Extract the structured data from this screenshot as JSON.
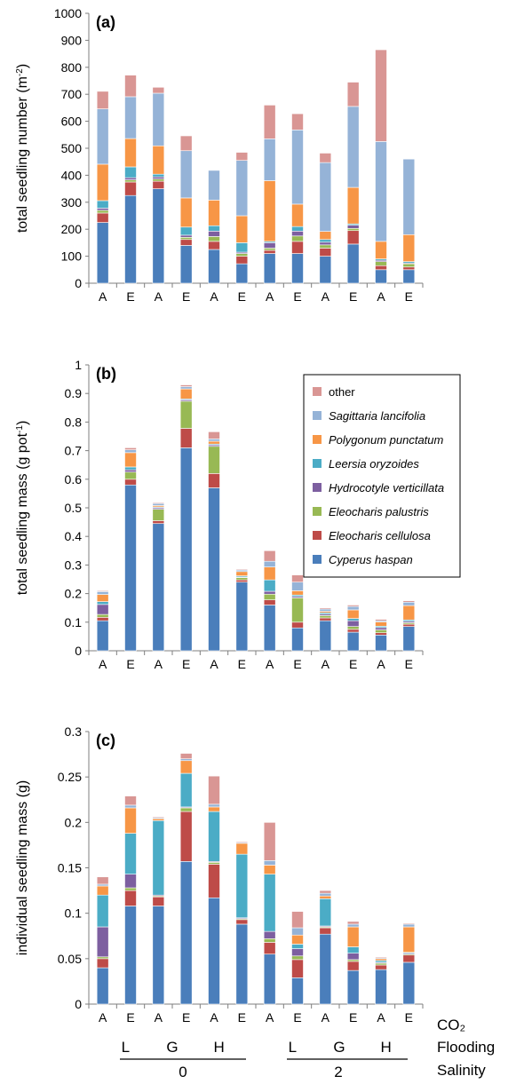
{
  "colors": {
    "Cyperus haspan": "#4a7ebb",
    "Eleocharis cellulosa": "#be4b48",
    "Eleocharis palustris": "#98b954",
    "Hydrocotyle verticillata": "#7d5fa0",
    "Leersia oryzoides": "#4bacc6",
    "Polygonum punctatum": "#f79646",
    "Sagittaria lancifolia": "#95b3d7",
    "other": "#d99694"
  },
  "chart_data": [
    {
      "type": "bar",
      "stacked": true,
      "panel_label": "(a)",
      "ylabel": "total seedling number (m",
      "ylabel_sup": "-2",
      "ylabel_tail": ")",
      "ylim": [
        0,
        1000
      ],
      "yticks": [
        "0",
        "100",
        "200",
        "300",
        "400",
        "500",
        "600",
        "700",
        "800",
        "900",
        "1000"
      ],
      "categories": [
        "A",
        "E",
        "A",
        "E",
        "A",
        "E",
        "A",
        "E",
        "A",
        "E",
        "A",
        "E"
      ],
      "series": [
        {
          "name": "Cyperus haspan",
          "values": [
            225,
            325,
            350,
            140,
            125,
            72,
            110,
            110,
            100,
            145,
            50,
            50
          ]
        },
        {
          "name": "Eleocharis cellulosa",
          "values": [
            35,
            50,
            28,
            22,
            30,
            28,
            12,
            45,
            30,
            50,
            15,
            10
          ]
        },
        {
          "name": "Eleocharis palustris",
          "values": [
            10,
            8,
            8,
            8,
            18,
            10,
            8,
            20,
            12,
            8,
            15,
            12
          ]
        },
        {
          "name": "Hydrocotyle verticillata",
          "values": [
            8,
            8,
            8,
            8,
            20,
            5,
            20,
            18,
            10,
            12,
            5,
            3
          ]
        },
        {
          "name": "Leersia oryzoides",
          "values": [
            28,
            40,
            10,
            30,
            20,
            35,
            5,
            17,
            10,
            5,
            5,
            5
          ]
        },
        {
          "name": "Polygonum punctatum",
          "values": [
            135,
            105,
            105,
            108,
            95,
            100,
            225,
            83,
            30,
            135,
            65,
            100
          ]
        },
        {
          "name": "Sagittaria lancifolia",
          "values": [
            205,
            155,
            195,
            175,
            110,
            205,
            155,
            275,
            255,
            300,
            370,
            280
          ]
        },
        {
          "name": "other",
          "values": [
            65,
            80,
            22,
            55,
            0,
            30,
            125,
            60,
            35,
            90,
            340,
            0
          ]
        }
      ]
    },
    {
      "type": "bar",
      "stacked": true,
      "panel_label": "(b)",
      "ylabel": "total seedling mass (g pot",
      "ylabel_sup": "-1",
      "ylabel_tail": ")",
      "ylim": [
        0,
        1
      ],
      "yticks": [
        "0",
        "0.1",
        "0.2",
        "0.3",
        "0.4",
        "0.5",
        "0.6",
        "0.7",
        "0.8",
        "0.9",
        "1"
      ],
      "categories": [
        "A",
        "E",
        "A",
        "E",
        "A",
        "E",
        "A",
        "E",
        "A",
        "E",
        "A",
        "E"
      ],
      "legend_position": "top-right",
      "legend_order": [
        "other",
        "Sagittaria lancifolia",
        "Polygonum punctatum",
        "Leersia oryzoides",
        "Hydrocotyle verticillata",
        "Eleocharis palustris",
        "Eleocharis cellulosa",
        "Cyperus haspan"
      ],
      "series": [
        {
          "name": "Cyperus haspan",
          "values": [
            0.105,
            0.58,
            0.445,
            0.71,
            0.57,
            0.24,
            0.16,
            0.08,
            0.105,
            0.065,
            0.055,
            0.085
          ]
        },
        {
          "name": "Eleocharis cellulosa",
          "values": [
            0.012,
            0.02,
            0.01,
            0.068,
            0.05,
            0.008,
            0.018,
            0.02,
            0.01,
            0.01,
            0.008,
            0.008
          ]
        },
        {
          "name": "Eleocharis palustris",
          "values": [
            0.01,
            0.025,
            0.04,
            0.095,
            0.095,
            0.008,
            0.02,
            0.085,
            0.008,
            0.01,
            0.01,
            0.005
          ]
        },
        {
          "name": "Hydrocotyle verticillata",
          "values": [
            0.035,
            0.008,
            0.005,
            0.005,
            0.005,
            0.002,
            0.01,
            0.005,
            0.005,
            0.02,
            0.008,
            0.005
          ]
        },
        {
          "name": "Leersia oryzoides",
          "values": [
            0.01,
            0.01,
            0.003,
            0.003,
            0.003,
            0.004,
            0.04,
            0.005,
            0.005,
            0.008,
            0.005,
            0.005
          ]
        },
        {
          "name": "Polygonum punctatum",
          "values": [
            0.025,
            0.05,
            0.005,
            0.035,
            0.01,
            0.015,
            0.045,
            0.015,
            0.005,
            0.03,
            0.015,
            0.05
          ]
        },
        {
          "name": "Sagittaria lancifolia",
          "values": [
            0.01,
            0.01,
            0.007,
            0.008,
            0.008,
            0.005,
            0.02,
            0.03,
            0.008,
            0.012,
            0.004,
            0.012
          ]
        },
        {
          "name": "other",
          "values": [
            0.003,
            0.007,
            0.003,
            0.006,
            0.025,
            0.003,
            0.037,
            0.025,
            0.004,
            0.005,
            0.005,
            0.005
          ]
        }
      ]
    },
    {
      "type": "bar",
      "stacked": true,
      "panel_label": "(c)",
      "ylabel": "individual seedling mass (g)",
      "ylim": [
        0,
        0.3
      ],
      "yticks": [
        "0",
        "0.05",
        "0.1",
        "0.15",
        "0.2",
        "0.25",
        "0.3"
      ],
      "categories": [
        "A",
        "E",
        "A",
        "E",
        "A",
        "E",
        "A",
        "E",
        "A",
        "E",
        "A",
        "E"
      ],
      "series": [
        {
          "name": "Cyperus haspan",
          "values": [
            0.04,
            0.108,
            0.108,
            0.157,
            0.117,
            0.088,
            0.055,
            0.029,
            0.077,
            0.037,
            0.038,
            0.046
          ]
        },
        {
          "name": "Eleocharis cellulosa",
          "values": [
            0.01,
            0.017,
            0.01,
            0.055,
            0.037,
            0.005,
            0.013,
            0.02,
            0.007,
            0.01,
            0.005,
            0.008
          ]
        },
        {
          "name": "Eleocharis palustris",
          "values": [
            0.002,
            0.003,
            0.001,
            0.004,
            0.002,
            0.001,
            0.004,
            0.004,
            0.001,
            0.002,
            0.002,
            0.001
          ]
        },
        {
          "name": "Hydrocotyle verticillata",
          "values": [
            0.033,
            0.015,
            0.001,
            0.001,
            0.001,
            0.001,
            0.008,
            0.008,
            0.001,
            0.007,
            0.001,
            0.001
          ]
        },
        {
          "name": "Leersia oryzoides",
          "values": [
            0.035,
            0.045,
            0.082,
            0.037,
            0.055,
            0.07,
            0.063,
            0.005,
            0.03,
            0.007,
            0.002,
            0.001
          ]
        },
        {
          "name": "Polygonum punctatum",
          "values": [
            0.01,
            0.028,
            0.002,
            0.014,
            0.005,
            0.012,
            0.01,
            0.01,
            0.003,
            0.022,
            0.002,
            0.028
          ]
        },
        {
          "name": "Sagittaria lancifolia",
          "values": [
            0.002,
            0.003,
            0.001,
            0.002,
            0.003,
            0.001,
            0.005,
            0.008,
            0.003,
            0.003,
            0.001,
            0.003
          ]
        },
        {
          "name": "other",
          "values": [
            0.008,
            0.01,
            0.001,
            0.006,
            0.031,
            0.001,
            0.042,
            0.018,
            0.003,
            0.003,
            0.001,
            0.001
          ]
        }
      ]
    }
  ],
  "x_annotations": {
    "row_labels": [
      "CO₂",
      "Flooding",
      "Salinity"
    ],
    "flooding_groups": [
      "L",
      "G",
      "H",
      "L",
      "G",
      "H"
    ],
    "salinity_groups": [
      "0",
      "2"
    ]
  }
}
